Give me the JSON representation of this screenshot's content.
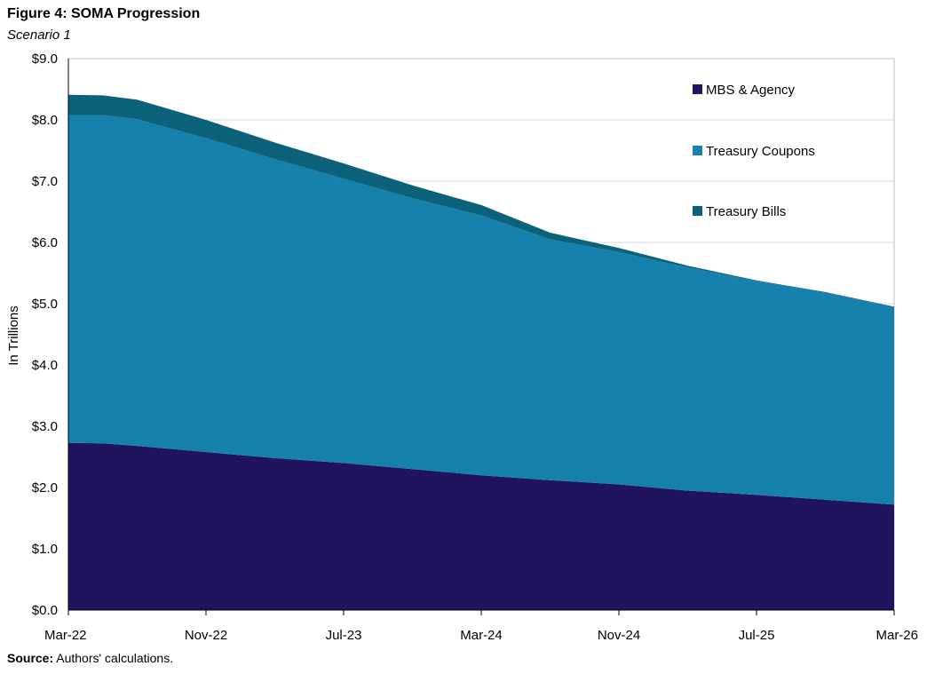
{
  "header": {
    "title": "Figure 4: SOMA Progression",
    "subtitle": "Scenario 1"
  },
  "footer": {
    "source_label": "Source:",
    "source_text": "Authors' calculations."
  },
  "colors": {
    "mbs": "#21145f",
    "coupons": "#1781ae",
    "bills": "#0c627b",
    "grid": "#d9d9d9",
    "axis": "#000000"
  },
  "chart_data": {
    "type": "area",
    "stacked": true,
    "title": "Figure 4: SOMA Progression",
    "subtitle": "Scenario 1",
    "xlabel": "",
    "ylabel": "In Trillions",
    "ylim": [
      0,
      9
    ],
    "y_ticks": [
      "$0.0",
      "$1.0",
      "$2.0",
      "$3.0",
      "$4.0",
      "$5.0",
      "$6.0",
      "$7.0",
      "$8.0",
      "$9.0"
    ],
    "x_ticks": [
      "Mar-22",
      "Nov-22",
      "Jul-23",
      "Mar-24",
      "Nov-24",
      "Jul-25",
      "Mar-26"
    ],
    "x_tick_months": [
      0,
      8,
      16,
      24,
      32,
      40,
      48
    ],
    "grid": true,
    "legend_position": "top-right",
    "x_months": [
      0,
      2,
      4,
      8,
      12,
      16,
      20,
      24,
      28,
      32,
      36,
      40,
      44,
      48
    ],
    "series": [
      {
        "name": "MBS & Agency",
        "color_key": "mbs",
        "values": [
          2.73,
          2.72,
          2.68,
          2.58,
          2.48,
          2.4,
          2.3,
          2.2,
          2.12,
          2.05,
          1.95,
          1.88,
          1.8,
          1.72
        ]
      },
      {
        "name": "Treasury Coupons",
        "color_key": "coupons",
        "values": [
          5.35,
          5.36,
          5.33,
          5.12,
          4.88,
          4.64,
          4.42,
          4.24,
          3.93,
          3.79,
          3.64,
          3.49,
          3.38,
          3.22
        ]
      },
      {
        "name": "Treasury Bills",
        "color_key": "bills",
        "values": [
          0.33,
          0.32,
          0.32,
          0.3,
          0.27,
          0.25,
          0.21,
          0.17,
          0.11,
          0.07,
          0.03,
          0.01,
          0.01,
          0.01
        ]
      }
    ]
  }
}
